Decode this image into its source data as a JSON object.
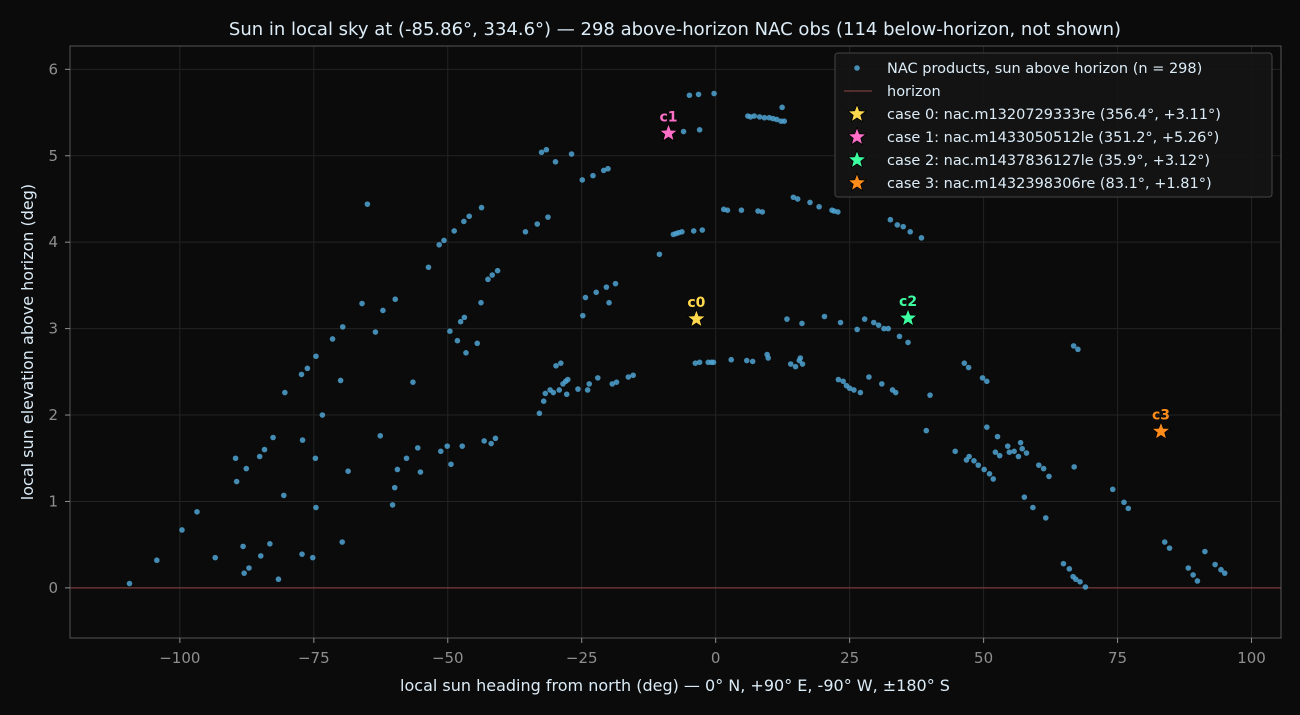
{
  "chart_data": {
    "type": "scatter",
    "title": "Sun in local sky at (-85.86°, 334.6°)  —  298 above-horizon NAC obs  (114 below-horizon, not shown)",
    "xlabel": "local sun heading from north (deg)  —  0° N, +90° E, -90° W, ±180° S",
    "ylabel": "local sun elevation above horizon (deg)",
    "xlim": [
      -120.5,
      105.5
    ],
    "ylim": [
      -0.58,
      6.27
    ],
    "xticks": [
      -100,
      -75,
      -50,
      -25,
      0,
      25,
      50,
      75,
      100
    ],
    "xtick_labels": [
      "−100",
      "−75",
      "−50",
      "−25",
      "0",
      "25",
      "50",
      "75",
      "100"
    ],
    "yticks": [
      0,
      1,
      2,
      3,
      4,
      5,
      6
    ],
    "ytick_labels": [
      "0",
      "1",
      "2",
      "3",
      "4",
      "5",
      "6"
    ],
    "grid": true,
    "legend_position": "top-right",
    "horizon": {
      "y": 0,
      "label": "horizon",
      "color": "#7a3b3b"
    },
    "point_color": "#4fa3d1",
    "series": [
      {
        "name": "NAC products, sun above horizon  (n = 298)",
        "points": [
          [
            -109.4,
            0.05
          ],
          [
            -104.3,
            0.32
          ],
          [
            -99.6,
            0.67
          ],
          [
            -96.8,
            0.88
          ],
          [
            -93.4,
            0.35
          ],
          [
            -89.6,
            1.5
          ],
          [
            -89.4,
            1.23
          ],
          [
            -88.2,
            0.48
          ],
          [
            -87.6,
            1.38
          ],
          [
            -88.0,
            0.17
          ],
          [
            -87.1,
            0.23
          ],
          [
            -85.1,
            1.52
          ],
          [
            -84.9,
            0.37
          ],
          [
            -84.2,
            1.6
          ],
          [
            -83.2,
            0.51
          ],
          [
            -82.6,
            1.74
          ],
          [
            -81.6,
            0.1
          ],
          [
            -80.6,
            1.07
          ],
          [
            -80.4,
            2.26
          ],
          [
            -77.3,
            2.47
          ],
          [
            -77.1,
            1.71
          ],
          [
            -77.2,
            0.39
          ],
          [
            -76.2,
            2.54
          ],
          [
            -75.2,
            0.35
          ],
          [
            -74.7,
            1.5
          ],
          [
            -74.6,
            2.68
          ],
          [
            -74.6,
            0.93
          ],
          [
            -73.4,
            2.0
          ],
          [
            -71.5,
            2.88
          ],
          [
            -70.0,
            2.4
          ],
          [
            -69.6,
            3.02
          ],
          [
            -69.7,
            0.53
          ],
          [
            -68.6,
            1.35
          ],
          [
            -66.0,
            3.29
          ],
          [
            -65.0,
            4.44
          ],
          [
            -63.5,
            2.96
          ],
          [
            -62.6,
            1.76
          ],
          [
            -62.1,
            3.21
          ],
          [
            -60.3,
            0.96
          ],
          [
            -59.9,
            1.16
          ],
          [
            -59.8,
            3.34
          ],
          [
            -59.4,
            1.37
          ],
          [
            -57.7,
            1.5
          ],
          [
            -56.5,
            2.38
          ],
          [
            -55.6,
            1.62
          ],
          [
            -55.1,
            1.34
          ],
          [
            -53.6,
            3.71
          ],
          [
            -51.6,
            3.97
          ],
          [
            -51.3,
            1.58
          ],
          [
            -50.7,
            4.02
          ],
          [
            -50.1,
            1.64
          ],
          [
            -49.6,
            2.97
          ],
          [
            -49.4,
            1.43
          ],
          [
            -48.8,
            4.13
          ],
          [
            -48.2,
            2.86
          ],
          [
            -47.6,
            3.08
          ],
          [
            -47.3,
            1.64
          ],
          [
            -47.0,
            4.24
          ],
          [
            -46.9,
            3.13
          ],
          [
            -46.6,
            2.72
          ],
          [
            -46.0,
            4.3
          ],
          [
            -44.5,
            2.83
          ],
          [
            -43.8,
            3.3
          ],
          [
            -43.7,
            4.4
          ],
          [
            -43.2,
            1.7
          ],
          [
            -42.5,
            3.57
          ],
          [
            -41.9,
            1.67
          ],
          [
            -41.7,
            3.62
          ],
          [
            -41.1,
            1.73
          ],
          [
            -40.7,
            3.67
          ],
          [
            -35.5,
            4.12
          ],
          [
            -33.3,
            4.21
          ],
          [
            -32.9,
            2.02
          ],
          [
            -32.5,
            5.04
          ],
          [
            -32.1,
            2.16
          ],
          [
            -31.8,
            2.25
          ],
          [
            -31.3,
            4.29
          ],
          [
            -31.6,
            5.07
          ],
          [
            -30.9,
            2.29
          ],
          [
            -30.3,
            2.26
          ],
          [
            -29.9,
            4.93
          ],
          [
            -29.8,
            2.57
          ],
          [
            -29.2,
            2.29
          ],
          [
            -28.9,
            2.6
          ],
          [
            -28.5,
            2.36
          ],
          [
            -28.0,
            2.39
          ],
          [
            -27.8,
            2.24
          ],
          [
            -27.6,
            2.41
          ],
          [
            -26.9,
            5.02
          ],
          [
            -25.7,
            2.3
          ],
          [
            -24.9,
            4.72
          ],
          [
            -24.8,
            3.15
          ],
          [
            -24.3,
            3.36
          ],
          [
            -23.9,
            2.29
          ],
          [
            -23.6,
            2.36
          ],
          [
            -22.9,
            4.77
          ],
          [
            -22.3,
            3.42
          ],
          [
            -22.0,
            2.43
          ],
          [
            -20.9,
            4.83
          ],
          [
            -20.4,
            3.48
          ],
          [
            -20.1,
            4.85
          ],
          [
            -19.9,
            3.3
          ],
          [
            -19.3,
            2.36
          ],
          [
            -18.7,
            3.52
          ],
          [
            -18.5,
            2.38
          ],
          [
            -16.3,
            2.44
          ],
          [
            -15.4,
            2.46
          ],
          [
            -10.5,
            3.86
          ],
          [
            -8.7,
            5.28
          ],
          [
            -7.9,
            4.09
          ],
          [
            -7.4,
            4.1
          ],
          [
            -6.9,
            4.11
          ],
          [
            -6.3,
            4.12
          ],
          [
            -6.0,
            5.28
          ],
          [
            -4.9,
            5.7
          ],
          [
            -4.1,
            4.13
          ],
          [
            -3.8,
            2.6
          ],
          [
            -3.2,
            5.71
          ],
          [
            -3.0,
            5.3
          ],
          [
            -3.0,
            2.61
          ],
          [
            -2.5,
            4.14
          ],
          [
            -1.4,
            2.61
          ],
          [
            -0.8,
            2.61
          ],
          [
            -0.3,
            5.72
          ],
          [
            -0.4,
            2.61
          ],
          [
            1.5,
            4.38
          ],
          [
            2.2,
            4.37
          ],
          [
            2.9,
            2.64
          ],
          [
            4.8,
            4.37
          ],
          [
            5.8,
            2.63
          ],
          [
            6.0,
            5.46
          ],
          [
            6.9,
            2.62
          ],
          [
            6.5,
            5.45
          ],
          [
            7.2,
            5.46
          ],
          [
            7.9,
            4.36
          ],
          [
            8.2,
            5.45
          ],
          [
            8.7,
            4.35
          ],
          [
            9.1,
            5.44
          ],
          [
            9.6,
            2.7
          ],
          [
            9.8,
            2.66
          ],
          [
            10.0,
            5.44
          ],
          [
            10.7,
            5.43
          ],
          [
            11.4,
            5.42
          ],
          [
            12.2,
            5.4
          ],
          [
            12.4,
            5.56
          ],
          [
            12.8,
            5.4
          ],
          [
            13.3,
            3.11
          ],
          [
            14.0,
            2.59
          ],
          [
            14.5,
            4.52
          ],
          [
            14.9,
            2.56
          ],
          [
            15.3,
            4.5
          ],
          [
            15.6,
            2.63
          ],
          [
            15.8,
            2.66
          ],
          [
            16.1,
            3.06
          ],
          [
            16.2,
            2.59
          ],
          [
            17.6,
            4.46
          ],
          [
            19.3,
            4.41
          ],
          [
            20.3,
            3.14
          ],
          [
            21.7,
            4.37
          ],
          [
            22.1,
            4.36
          ],
          [
            22.8,
            4.35
          ],
          [
            22.9,
            2.41
          ],
          [
            23.3,
            3.07
          ],
          [
            23.8,
            2.39
          ],
          [
            24.4,
            2.34
          ],
          [
            25.0,
            2.31
          ],
          [
            25.8,
            2.29
          ],
          [
            26.4,
            2.99
          ],
          [
            27.0,
            2.26
          ],
          [
            27.8,
            3.11
          ],
          [
            28.6,
            2.44
          ],
          [
            29.5,
            3.07
          ],
          [
            30.4,
            3.04
          ],
          [
            31.0,
            2.36
          ],
          [
            31.4,
            3.0
          ],
          [
            32.2,
            3.0
          ],
          [
            32.6,
            4.26
          ],
          [
            33.0,
            2.29
          ],
          [
            33.6,
            2.26
          ],
          [
            33.9,
            4.2
          ],
          [
            34.3,
            2.91
          ],
          [
            35.0,
            4.18
          ],
          [
            35.9,
            2.84
          ],
          [
            36.3,
            4.12
          ],
          [
            38.4,
            4.05
          ],
          [
            39.3,
            1.82
          ],
          [
            40.0,
            2.23
          ],
          [
            44.7,
            1.58
          ],
          [
            46.4,
            2.6
          ],
          [
            46.8,
            1.48
          ],
          [
            47.2,
            2.55
          ],
          [
            47.3,
            1.52
          ],
          [
            48.2,
            1.47
          ],
          [
            49.0,
            1.42
          ],
          [
            49.8,
            2.43
          ],
          [
            50.1,
            1.37
          ],
          [
            50.6,
            2.39
          ],
          [
            50.6,
            1.86
          ],
          [
            51.1,
            1.32
          ],
          [
            51.8,
            1.26
          ],
          [
            52.2,
            1.57
          ],
          [
            52.6,
            1.75
          ],
          [
            53.0,
            1.53
          ],
          [
            54.5,
            1.64
          ],
          [
            54.8,
            1.57
          ],
          [
            55.7,
            1.58
          ],
          [
            56.5,
            1.52
          ],
          [
            56.9,
            1.68
          ],
          [
            57.2,
            1.61
          ],
          [
            57.6,
            1.05
          ],
          [
            58.0,
            1.56
          ],
          [
            59.2,
            0.93
          ],
          [
            60.3,
            1.42
          ],
          [
            61.2,
            1.38
          ],
          [
            61.6,
            0.81
          ],
          [
            62.2,
            1.29
          ],
          [
            64.9,
            0.28
          ],
          [
            66.0,
            0.22
          ],
          [
            66.7,
            0.13
          ],
          [
            66.8,
            2.8
          ],
          [
            66.9,
            1.4
          ],
          [
            67.2,
            0.1
          ],
          [
            67.6,
            2.76
          ],
          [
            68.0,
            0.07
          ],
          [
            69.0,
            0.01
          ],
          [
            74.1,
            1.14
          ],
          [
            76.2,
            0.99
          ],
          [
            77.0,
            0.92
          ],
          [
            83.8,
            0.53
          ],
          [
            84.7,
            0.46
          ],
          [
            88.2,
            0.23
          ],
          [
            89.1,
            0.15
          ],
          [
            89.9,
            0.08
          ],
          [
            91.3,
            0.42
          ],
          [
            93.2,
            0.27
          ],
          [
            94.3,
            0.21
          ],
          [
            95.0,
            0.17
          ]
        ]
      }
    ],
    "cases": [
      {
        "label": "c0",
        "legend": "case 0: nac.m1320729333re  (356.4°, +3.11°)",
        "x": -3.6,
        "y": 3.11,
        "color": "#ffd84d"
      },
      {
        "label": "c1",
        "legend": "case 1: nac.m1433050512le  (351.2°, +5.26°)",
        "x": -8.8,
        "y": 5.26,
        "color": "#ff6ec7"
      },
      {
        "label": "c2",
        "legend": "case 2: nac.m1437836127le  (35.9°, +3.12°)",
        "x": 35.9,
        "y": 3.12,
        "color": "#3dffa0"
      },
      {
        "label": "c3",
        "legend": "case 3: nac.m1432398306re  (83.1°, +1.81°)",
        "x": 83.1,
        "y": 1.81,
        "color": "#ff8c1a"
      }
    ]
  }
}
